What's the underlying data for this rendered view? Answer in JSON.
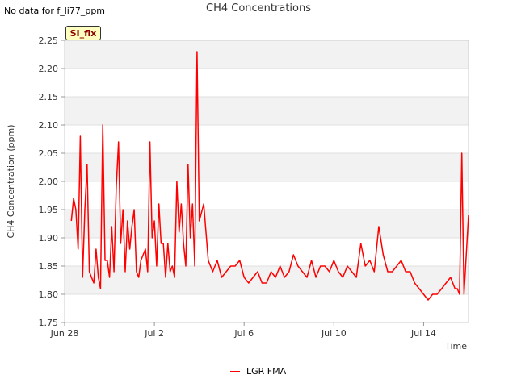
{
  "note": "No data for f_li77_ppm",
  "badge": "SI_flx",
  "chart_data": {
    "type": "line",
    "title": "CH4 Concentrations",
    "xlabel": "Time",
    "ylabel": "CH4 Concentration (ppm)",
    "ylim": [
      1.75,
      2.25
    ],
    "xlim": [
      0,
      18
    ],
    "yticks": [
      1.75,
      1.8,
      1.85,
      1.9,
      1.95,
      2.0,
      2.05,
      2.1,
      2.15,
      2.2,
      2.25
    ],
    "ytick_labels": [
      "1.75",
      "1.80",
      "1.85",
      "1.90",
      "1.95",
      "2.00",
      "2.05",
      "2.10",
      "2.15",
      "2.20",
      "2.25"
    ],
    "xticks": [
      0,
      4,
      8,
      12,
      16
    ],
    "xtick_labels": [
      "Jun 28",
      "Jul 2",
      "Jul 6",
      "Jul 10",
      "Jul 14"
    ],
    "grid": true,
    "legend_position": "bottom-center",
    "series": [
      {
        "name": "LGR FMA",
        "color": "#ff0000",
        "x": [
          0.3,
          0.4,
          0.5,
          0.6,
          0.7,
          0.8,
          0.9,
          1.0,
          1.1,
          1.2,
          1.3,
          1.4,
          1.5,
          1.6,
          1.7,
          1.8,
          1.9,
          2.0,
          2.1,
          2.2,
          2.3,
          2.4,
          2.5,
          2.6,
          2.7,
          2.8,
          2.9,
          3.0,
          3.1,
          3.2,
          3.3,
          3.4,
          3.5,
          3.6,
          3.7,
          3.8,
          3.9,
          4.0,
          4.1,
          4.2,
          4.3,
          4.4,
          4.5,
          4.6,
          4.7,
          4.8,
          4.9,
          5.0,
          5.1,
          5.2,
          5.3,
          5.4,
          5.5,
          5.6,
          5.7,
          5.8,
          5.9,
          6.0,
          6.2,
          6.4,
          6.6,
          6.8,
          7.0,
          7.2,
          7.4,
          7.6,
          7.8,
          8.0,
          8.2,
          8.4,
          8.6,
          8.8,
          9.0,
          9.2,
          9.4,
          9.6,
          9.8,
          10.0,
          10.2,
          10.4,
          10.6,
          10.8,
          11.0,
          11.2,
          11.4,
          11.6,
          11.8,
          12.0,
          12.2,
          12.4,
          12.6,
          12.8,
          13.0,
          13.2,
          13.4,
          13.6,
          13.8,
          14.0,
          14.2,
          14.4,
          14.6,
          14.8,
          15.0,
          15.2,
          15.4,
          15.6,
          15.8,
          16.0,
          16.2,
          16.4,
          16.6,
          16.8,
          17.0,
          17.2,
          17.4,
          17.5,
          17.6,
          17.7,
          17.8,
          17.9,
          18.0
        ],
        "values": [
          1.93,
          1.97,
          1.95,
          1.88,
          2.08,
          1.83,
          1.95,
          2.03,
          1.84,
          1.83,
          1.82,
          1.88,
          1.83,
          1.81,
          2.1,
          1.86,
          1.86,
          1.83,
          1.92,
          1.84,
          1.99,
          2.07,
          1.89,
          1.95,
          1.84,
          1.93,
          1.88,
          1.92,
          1.95,
          1.84,
          1.83,
          1.86,
          1.87,
          1.88,
          1.84,
          2.07,
          1.9,
          1.93,
          1.85,
          1.96,
          1.89,
          1.89,
          1.83,
          1.89,
          1.84,
          1.85,
          1.83,
          2.0,
          1.91,
          1.96,
          1.89,
          1.85,
          2.03,
          1.9,
          1.96,
          1.85,
          2.23,
          1.93,
          1.96,
          1.86,
          1.84,
          1.86,
          1.83,
          1.84,
          1.85,
          1.85,
          1.86,
          1.83,
          1.82,
          1.83,
          1.84,
          1.82,
          1.82,
          1.84,
          1.83,
          1.85,
          1.83,
          1.84,
          1.87,
          1.85,
          1.84,
          1.83,
          1.86,
          1.83,
          1.85,
          1.85,
          1.84,
          1.86,
          1.84,
          1.83,
          1.85,
          1.84,
          1.83,
          1.89,
          1.85,
          1.86,
          1.84,
          1.92,
          1.87,
          1.84,
          1.84,
          1.85,
          1.86,
          1.84,
          1.84,
          1.82,
          1.81,
          1.8,
          1.79,
          1.8,
          1.8,
          1.81,
          1.82,
          1.83,
          1.81,
          1.81,
          1.8,
          2.05,
          1.8,
          1.87,
          1.94
        ]
      }
    ]
  }
}
